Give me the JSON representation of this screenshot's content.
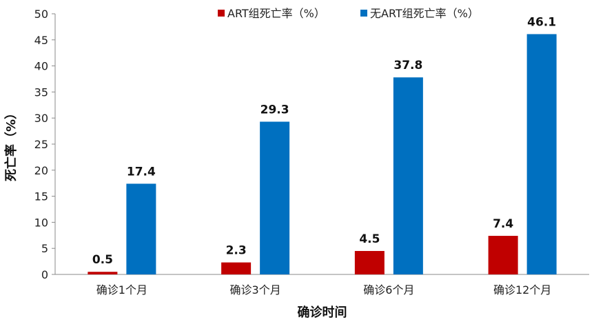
{
  "chart_data": {
    "type": "bar",
    "categories": [
      "确诊1个月",
      "确诊3个月",
      "确诊6个月",
      "确诊12个月"
    ],
    "series": [
      {
        "name": "ART组死亡率（%）",
        "color": "#C00000",
        "values": [
          0.5,
          2.3,
          4.5,
          7.4
        ]
      },
      {
        "name": "无ART组死亡率（%）",
        "color": "#0070C0",
        "values": [
          17.4,
          29.3,
          37.8,
          46.1
        ]
      }
    ],
    "title": "",
    "xlabel": "确诊时间",
    "ylabel": "死亡率（%）",
    "ylim": [
      0,
      50
    ],
    "yticks": [
      0,
      5,
      10,
      15,
      20,
      25,
      30,
      35,
      40,
      45,
      50
    ],
    "grid": false,
    "legend_position": "top-center"
  }
}
